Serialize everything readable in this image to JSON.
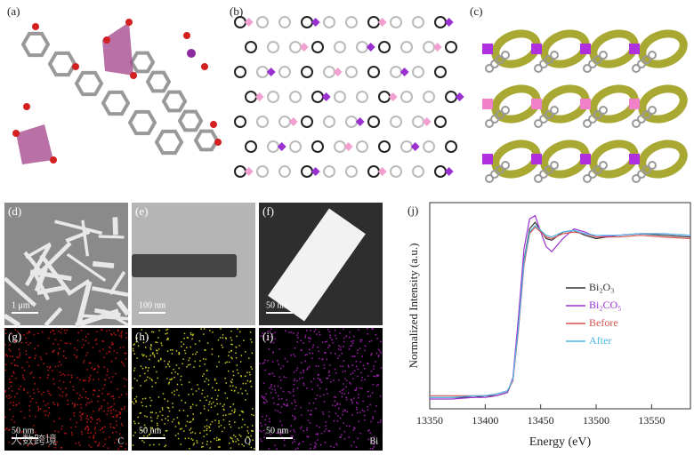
{
  "panels": {
    "a": {
      "label": "(a)"
    },
    "b": {
      "label": "(b)"
    },
    "c": {
      "label": "(c)"
    },
    "d": {
      "label": "(d)",
      "scale": "1 μm"
    },
    "e": {
      "label": "(e)",
      "scale": "100 nm"
    },
    "f": {
      "label": "(f)",
      "scale": "50 nm"
    },
    "g": {
      "label": "(g)",
      "scale": "50 nm",
      "element": "C"
    },
    "h": {
      "label": "(h)",
      "scale": "50 nm",
      "element": "O"
    },
    "i": {
      "label": "(i)",
      "scale": "50 nm",
      "element": "Bi"
    },
    "j": {
      "label": "(j)"
    }
  },
  "watermark": "大数跨境",
  "chart_data": {
    "type": "line",
    "xlabel": "Energy (eV)",
    "ylabel": "Normalized Intensity (a.u.)",
    "x": [
      13350,
      13370,
      13390,
      13400,
      13410,
      13420,
      13425,
      13430,
      13435,
      13440,
      13445,
      13450,
      13455,
      13460,
      13470,
      13480,
      13490,
      13500,
      13520,
      13540,
      13560,
      13585
    ],
    "xlim": [
      13350,
      13585
    ],
    "xticks": [
      13350,
      13400,
      13450,
      13500,
      13550
    ],
    "ylim": [
      -0.06,
      1.2
    ],
    "series": [
      {
        "name": "Bi₂O₃",
        "color": "#333333",
        "values": [
          0.01,
          0.01,
          0.01,
          0.02,
          0.02,
          0.04,
          0.12,
          0.45,
          0.85,
          1.04,
          1.08,
          1.03,
          0.98,
          0.97,
          1.02,
          1.03,
          1.0,
          0.98,
          1.0,
          1.01,
          1.0,
          0.99
        ]
      },
      {
        "name": "Bi₂CO₅",
        "color": "#9b30d0",
        "values": [
          0.0,
          0.0,
          0.01,
          0.01,
          0.02,
          0.04,
          0.13,
          0.5,
          0.92,
          1.1,
          1.12,
          1.02,
          0.93,
          0.9,
          0.98,
          1.04,
          1.02,
          0.99,
          1.0,
          1.01,
          1.01,
          1.0
        ]
      },
      {
        "name": "Before",
        "color": "#d9534f",
        "values": [
          0.02,
          0.02,
          0.02,
          0.02,
          0.03,
          0.05,
          0.11,
          0.42,
          0.82,
          1.01,
          1.05,
          1.02,
          0.99,
          0.98,
          1.01,
          1.02,
          1.01,
          0.99,
          0.99,
          1.0,
          0.99,
          0.98
        ]
      },
      {
        "name": "After",
        "color": "#4db8e8",
        "values": [
          0.01,
          0.01,
          0.02,
          0.02,
          0.03,
          0.05,
          0.12,
          0.44,
          0.84,
          1.02,
          1.06,
          1.03,
          1.0,
          0.99,
          1.02,
          1.03,
          1.01,
          1.0,
          1.0,
          1.01,
          1.01,
          1.0
        ]
      }
    ],
    "legend": "center-right"
  }
}
